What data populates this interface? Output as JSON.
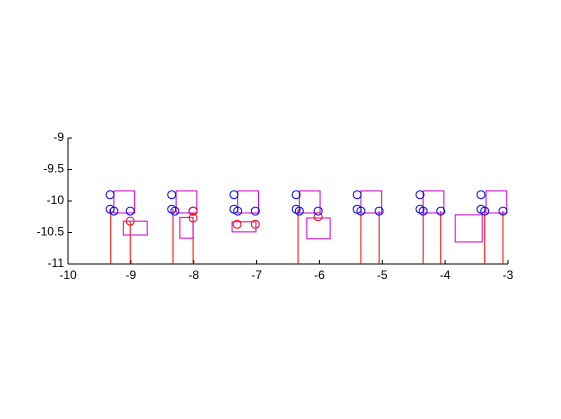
{
  "chart_data": {
    "type": "scatter",
    "xlim": [
      -10,
      -3
    ],
    "ylim": [
      -11,
      -9
    ],
    "xticks": [
      -10,
      -9,
      -8,
      -7,
      -6,
      -5,
      -4,
      -3
    ],
    "yticks": [
      -11,
      -10.5,
      -10,
      -9.5,
      -9
    ],
    "series": [
      {
        "color": "#0000ff",
        "x": [
          -9.33,
          -9.33,
          -9.27,
          -9.01,
          -8.35,
          -8.35,
          -8.3,
          -8.01,
          -7.36,
          -7.36,
          -7.3,
          -7.02,
          -6.37,
          -6.37,
          -6.32,
          -6.02,
          -5.4,
          -5.4,
          -5.34,
          -5.05,
          -4.4,
          -4.4,
          -4.35,
          -4.07,
          -3.43,
          -3.43,
          -3.37,
          -3.08
        ],
        "values": [
          -9.9,
          -10.13,
          -10.16,
          -10.16,
          -9.9,
          -10.13,
          -10.16,
          -10.16,
          -9.9,
          -10.13,
          -10.16,
          -10.16,
          -9.9,
          -10.13,
          -10.16,
          -10.16,
          -9.9,
          -10.13,
          -10.16,
          -10.16,
          -9.9,
          -10.13,
          -10.16,
          -10.16,
          -9.9,
          -10.13,
          -10.16,
          -10.16
        ]
      },
      {
        "color": "#ff0000",
        "x": [
          -9.01,
          -8.01,
          -8.01,
          -7.31,
          -7.02,
          -6.02
        ],
        "values": [
          -10.32,
          -10.16,
          -10.27,
          -10.37,
          -10.37,
          -10.25
        ]
      }
    ],
    "stems": {
      "color": "#ff0000",
      "x": [
        -9.32,
        -9.01,
        -8.33,
        -8.01,
        -6.34,
        -5.34,
        -5.05,
        -4.35,
        -4.07,
        -3.37,
        -3.08
      ],
      "values": [
        -10.13,
        -10.32,
        -10.13,
        -10.27,
        -10.13,
        -10.16,
        -10.16,
        -10.16,
        -10.16,
        -10.16,
        -10.16
      ]
    },
    "rects": {
      "color": "#cc00cc",
      "x": [
        -9.27,
        -8.28,
        -7.3,
        -6.32,
        -5.34,
        -4.35,
        -3.35,
        -9.12,
        -8.22,
        -7.39,
        -6.2,
        -3.84
      ],
      "y": [
        -10.19,
        -10.19,
        -10.19,
        -10.19,
        -10.19,
        -10.19,
        -10.19,
        -10.54,
        -10.59,
        -10.49,
        -10.6,
        -10.65
      ],
      "width": [
        0.33,
        0.33,
        0.33,
        0.33,
        0.33,
        0.33,
        0.33,
        0.38,
        0.21,
        0.38,
        0.37,
        0.43
      ],
      "height": [
        0.35,
        0.35,
        0.35,
        0.35,
        0.35,
        0.35,
        0.35,
        0.22,
        0.33,
        0.16,
        0.33,
        0.43
      ]
    }
  }
}
